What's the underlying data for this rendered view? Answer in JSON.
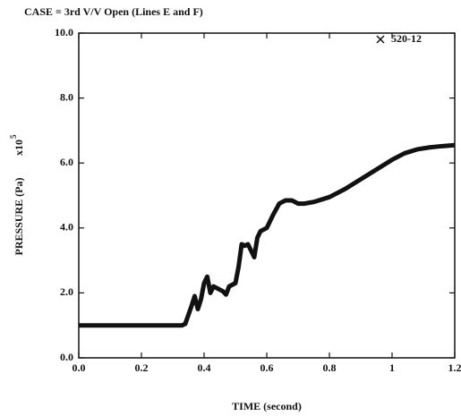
{
  "chart_data": {
    "type": "line",
    "title": "CASE = 3rd V/V Open (Lines E and F)",
    "x_label": "TIME (second)",
    "y_label": "PRESSURE (Pa)",
    "y_multiplier": "x10",
    "y_multiplier_exponent": "5",
    "xlim": [
      0,
      1.2
    ],
    "xticks": [
      {
        "value": 0,
        "label": "0.0"
      },
      0.2,
      0.4,
      0.6,
      0.8,
      1,
      1.2
    ],
    "ylim": [
      0,
      10
    ],
    "yticks": [
      {
        "value": 0,
        "label": "0.0"
      },
      {
        "value": 2,
        "label": "2.0"
      },
      {
        "value": 4,
        "label": "4.0"
      },
      {
        "value": 6,
        "label": "6.0"
      },
      {
        "value": 8,
        "label": "8.0"
      },
      {
        "value": 10,
        "label": "10.0"
      }
    ],
    "legend": "top-right",
    "x": [
      0,
      0.1,
      0.2,
      0.3,
      0.33,
      0.34,
      0.36,
      0.37,
      0.38,
      0.39,
      0.4,
      0.41,
      0.42,
      0.43,
      0.44,
      0.46,
      0.47,
      0.48,
      0.5,
      0.51,
      0.52,
      0.53,
      0.54,
      0.55,
      0.56,
      0.57,
      0.58,
      0.6,
      0.62,
      0.64,
      0.66,
      0.68,
      0.7,
      0.72,
      0.75,
      0.8,
      0.85,
      0.9,
      0.95,
      1.0,
      1.04,
      1.08,
      1.12,
      1.16,
      1.2
    ],
    "series": [
      {
        "name": "520-12",
        "color": "#111111",
        "values": [
          1.0,
          1.0,
          1.0,
          1.0,
          1.0,
          1.05,
          1.6,
          1.9,
          1.5,
          1.8,
          2.3,
          2.5,
          2.0,
          2.2,
          2.15,
          2.05,
          1.95,
          2.2,
          2.3,
          2.8,
          3.5,
          3.45,
          3.5,
          3.3,
          3.1,
          3.7,
          3.9,
          4.0,
          4.4,
          4.75,
          4.85,
          4.85,
          4.75,
          4.75,
          4.8,
          4.95,
          5.2,
          5.5,
          5.8,
          6.1,
          6.3,
          6.42,
          6.48,
          6.52,
          6.55
        ]
      }
    ]
  }
}
